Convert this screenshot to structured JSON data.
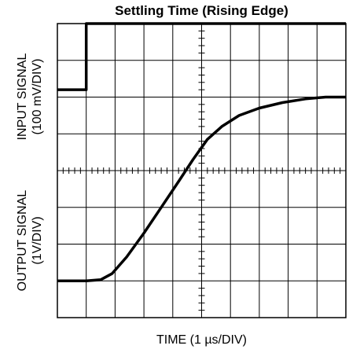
{
  "chart_data": {
    "type": "line",
    "title": "Settling Time (Rising Edge)",
    "xlabel": "TIME (1 µs/DIV)",
    "ylabel_top": [
      "INPUT SIGNAL",
      "(100 mV/DIV)"
    ],
    "ylabel_bottom": [
      "OUTPUT SIGNAL",
      "(1V/DIV)"
    ],
    "grid": true,
    "divisions": {
      "x": 10,
      "y": 8
    },
    "x_unit": "div",
    "series": [
      {
        "name": "INPUT SIGNAL",
        "points": [
          [
            0,
            6.2
          ],
          [
            1,
            6.2
          ],
          [
            1,
            8
          ],
          [
            10,
            8
          ]
        ]
      },
      {
        "name": "OUTPUT SIGNAL",
        "points": [
          [
            0,
            1
          ],
          [
            1,
            1
          ],
          [
            1.5,
            1.03
          ],
          [
            1.9,
            1.2
          ],
          [
            2.4,
            1.65
          ],
          [
            3,
            2.3
          ],
          [
            3.6,
            3
          ],
          [
            4.2,
            3.7
          ],
          [
            4.7,
            4.3
          ],
          [
            5.2,
            4.85
          ],
          [
            5.7,
            5.2
          ],
          [
            6.3,
            5.5
          ],
          [
            7,
            5.7
          ],
          [
            7.8,
            5.85
          ],
          [
            8.6,
            5.95
          ],
          [
            9.3,
            6
          ],
          [
            10,
            6
          ]
        ]
      }
    ]
  }
}
